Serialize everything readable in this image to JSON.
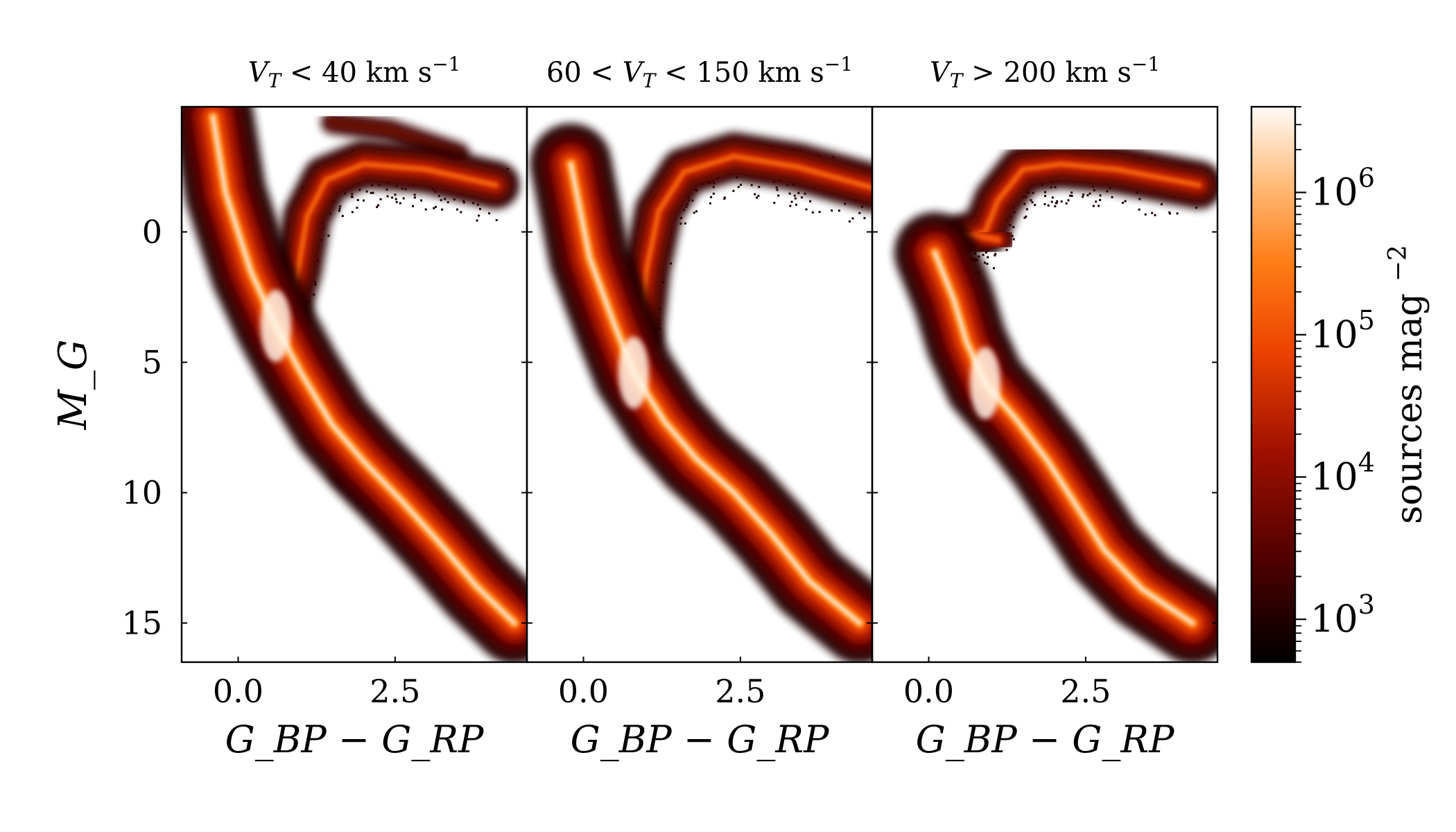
{
  "chart_data": {
    "type": "heatmap",
    "subtype": "hess-diagram",
    "colormap": "gist_heat",
    "panels": [
      {
        "title": {
          "pre": "",
          "var": "V",
          "sub": "T",
          "post": "< 40 km s",
          "sup": "−1"
        },
        "xlabel": "G_BP − G_RP",
        "ylabel": "M_G",
        "xlim": [
          -0.9,
          4.6
        ],
        "ylim": [
          16.5,
          -4.8
        ],
        "xticks": [
          "0.0",
          "2.5"
        ],
        "yticks": [
          "0",
          "5",
          "10",
          "15"
        ],
        "features": {
          "main_sequence": [
            [
              -0.4,
              -4.4
            ],
            [
              -0.2,
              -1.5
            ],
            [
              0.2,
              1.5
            ],
            [
              0.6,
              3.6
            ],
            [
              1.0,
              5.4
            ],
            [
              1.5,
              7.4
            ],
            [
              2.0,
              8.8
            ],
            [
              2.6,
              10.3
            ],
            [
              3.2,
              11.9
            ],
            [
              3.8,
              13.6
            ],
            [
              4.4,
              15.0
            ]
          ],
          "lower_branch": [
            [
              1.7,
              9.2
            ],
            [
              2.4,
              10.6
            ],
            [
              3.0,
              11.6
            ],
            [
              3.6,
              12.8
            ],
            [
              4.0,
              13.3
            ]
          ],
          "giant_branch": [
            [
              0.7,
              3.6
            ],
            [
              0.95,
              1.5
            ],
            [
              1.1,
              -0.6
            ],
            [
              1.4,
              -2.0
            ],
            [
              2.0,
              -2.6
            ],
            [
              3.0,
              -2.4
            ],
            [
              4.1,
              -1.8
            ]
          ],
          "upper_clump": [
            [
              1.5,
              -4.2
            ],
            [
              2.4,
              -3.9
            ],
            [
              3.5,
              -3.0
            ]
          ],
          "scatter_extends_to_x": 4.6
        }
      },
      {
        "title": {
          "pre": "60 < ",
          "var": "V",
          "sub": "T",
          "post": "< 150 km s",
          "sup": "−1"
        },
        "xlabel": "G_BP − G_RP",
        "ylabel": "",
        "xlim": [
          -0.9,
          4.6
        ],
        "ylim": [
          16.5,
          -4.8
        ],
        "xticks": [
          "0.0",
          "2.5"
        ],
        "yticks": [],
        "features": {
          "main_sequence": [
            [
              -0.2,
              -2.6
            ],
            [
              0.1,
              1.0
            ],
            [
              0.5,
              3.6
            ],
            [
              0.8,
              5.4
            ],
            [
              1.3,
              7.3
            ],
            [
              1.8,
              8.7
            ],
            [
              2.4,
              10.0
            ],
            [
              3.0,
              11.6
            ],
            [
              3.6,
              13.4
            ],
            [
              4.4,
              15.0
            ]
          ],
          "lower_branch": [
            [
              2.6,
              11.4
            ],
            [
              3.2,
              12.5
            ],
            [
              3.9,
              13.2
            ]
          ],
          "giant_branch": [
            [
              0.9,
              3.8
            ],
            [
              1.0,
              1.5
            ],
            [
              1.2,
              -0.8
            ],
            [
              1.6,
              -2.3
            ],
            [
              2.4,
              -2.9
            ],
            [
              3.4,
              -2.5
            ],
            [
              4.6,
              -1.7
            ]
          ],
          "upper_clump": [],
          "scatter_extends_to_x": 4.6
        }
      },
      {
        "title": {
          "pre": "",
          "var": "V",
          "sub": "T",
          "post": "> 200 km s",
          "sup": "−1"
        },
        "xlabel": "G_BP − G_RP",
        "ylabel": "",
        "xlim": [
          -0.9,
          4.6
        ],
        "ylim": [
          16.5,
          -4.8
        ],
        "xticks": [
          "0.0",
          "2.5"
        ],
        "yticks": [],
        "features": {
          "main_sequence": [
            [
              0.1,
              0.8
            ],
            [
              0.4,
              2.6
            ],
            [
              0.6,
              4.2
            ],
            [
              0.9,
              5.8
            ],
            [
              1.4,
              7.2
            ],
            [
              1.9,
              8.8
            ],
            [
              2.3,
              10.3
            ],
            [
              2.8,
              12.2
            ],
            [
              3.4,
              13.7
            ],
            [
              4.2,
              15.0
            ]
          ],
          "lower_branch": [],
          "giant_branch": [
            [
              0.6,
              0.2
            ],
            [
              0.9,
              0.0
            ],
            [
              1.1,
              -1.2
            ],
            [
              1.5,
              -2.4
            ],
            [
              2.1,
              -2.6
            ],
            [
              3.0,
              -2.4
            ],
            [
              4.3,
              -1.8
            ]
          ],
          "horizontal_branch": [
            [
              -0.05,
              0.5
            ],
            [
              0.3,
              0.2
            ],
            [
              0.7,
              0.1
            ],
            [
              1.1,
              0.3
            ]
          ],
          "upper_clump": [],
          "scatter_extends_to_x": 4.4
        }
      }
    ],
    "colorbar": {
      "label": "sources mag",
      "label_sup": "−2",
      "scale": "log",
      "range": [
        500,
        4000000
      ],
      "ticks": [
        {
          "value": 1000,
          "label": "10",
          "exp": "3"
        },
        {
          "value": 10000,
          "label": "10",
          "exp": "4"
        },
        {
          "value": 100000,
          "label": "10",
          "exp": "5"
        },
        {
          "value": 1000000,
          "label": "10",
          "exp": "6"
        }
      ]
    }
  }
}
